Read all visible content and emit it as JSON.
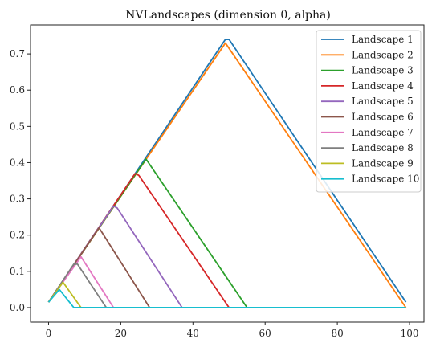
{
  "chart_data": {
    "type": "line",
    "title": "NVLandscapes (dimension 0, alpha)",
    "xlabel": "",
    "ylabel": "",
    "xlim": [
      -5,
      104
    ],
    "ylim": [
      -0.04,
      0.78
    ],
    "xticks": [
      0,
      20,
      40,
      60,
      80,
      100
    ],
    "yticks": [
      0.0,
      0.1,
      0.2,
      0.3,
      0.4,
      0.5,
      0.6,
      0.7
    ],
    "ytick_labels": [
      "0.0",
      "0.1",
      "0.2",
      "0.3",
      "0.4",
      "0.5",
      "0.6",
      "0.7"
    ],
    "grid": false,
    "legend_position": "top-right",
    "series": [
      {
        "name": "Landscape 1",
        "color": "#1f77b4",
        "x": [
          0,
          49,
          50,
          99
        ],
        "y": [
          0.015,
          0.74,
          0.74,
          0.015
        ]
      },
      {
        "name": "Landscape 2",
        "color": "#ff7f0e",
        "x": [
          0,
          49,
          99
        ],
        "y": [
          0.015,
          0.73,
          0.0
        ]
      },
      {
        "name": "Landscape 3",
        "color": "#2ca02c",
        "x": [
          0,
          27,
          55,
          99
        ],
        "y": [
          0.015,
          0.41,
          0.0,
          0.0
        ]
      },
      {
        "name": "Landscape 4",
        "color": "#d62728",
        "x": [
          0,
          24,
          25,
          50,
          99
        ],
        "y": [
          0.015,
          0.37,
          0.365,
          0.0,
          0.0
        ]
      },
      {
        "name": "Landscape 5",
        "color": "#9467bd",
        "x": [
          0,
          18,
          19,
          37,
          99
        ],
        "y": [
          0.015,
          0.28,
          0.275,
          0.0,
          0.0
        ]
      },
      {
        "name": "Landscape 6",
        "color": "#8c564b",
        "x": [
          0,
          14,
          28,
          99
        ],
        "y": [
          0.015,
          0.22,
          0.0,
          0.0
        ]
      },
      {
        "name": "Landscape 7",
        "color": "#e377c2",
        "x": [
          0,
          9,
          18,
          99
        ],
        "y": [
          0.015,
          0.14,
          0.0,
          0.0
        ]
      },
      {
        "name": "Landscape 8",
        "color": "#7f7f7f",
        "x": [
          0,
          7,
          8,
          16,
          99
        ],
        "y": [
          0.015,
          0.12,
          0.12,
          0.0,
          0.0
        ]
      },
      {
        "name": "Landscape 9",
        "color": "#bcbd22",
        "x": [
          0,
          4,
          9,
          99
        ],
        "y": [
          0.015,
          0.07,
          0.0,
          0.0
        ]
      },
      {
        "name": "Landscape 10",
        "color": "#17becf",
        "x": [
          0,
          3,
          7,
          99
        ],
        "y": [
          0.015,
          0.05,
          0.0,
          0.0
        ]
      }
    ]
  }
}
